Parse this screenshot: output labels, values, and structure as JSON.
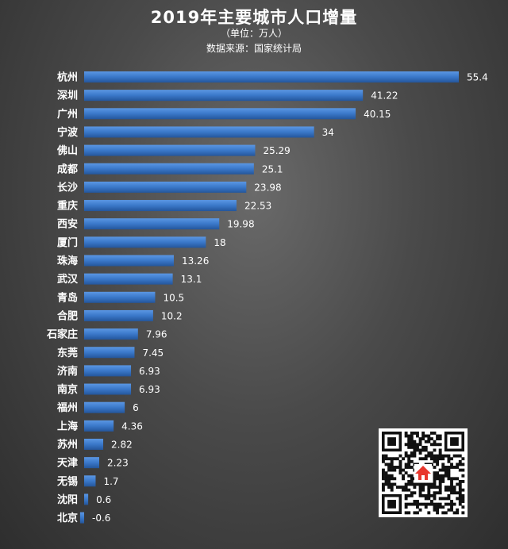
{
  "chart_data": {
    "type": "bar",
    "orientation": "horizontal",
    "title": "2019年主要城市人口增量",
    "subtitle": "（单位：万人）",
    "source": "数据来源：国家统计局",
    "categories": [
      "杭州",
      "深圳",
      "广州",
      "宁波",
      "佛山",
      "成都",
      "长沙",
      "重庆",
      "西安",
      "厦门",
      "珠海",
      "武汉",
      "青岛",
      "合肥",
      "石家庄",
      "东莞",
      "济南",
      "南京",
      "福州",
      "上海",
      "苏州",
      "天津",
      "无锡",
      "沈阳",
      "北京"
    ],
    "values": [
      55.4,
      41.22,
      40.15,
      34,
      25.29,
      25.1,
      23.98,
      22.53,
      19.98,
      18,
      13.26,
      13.1,
      10.5,
      10.2,
      7.96,
      7.45,
      6.93,
      6.93,
      6,
      4.36,
      2.82,
      2.23,
      1.7,
      0.6,
      -0.6
    ],
    "value_labels": [
      "55.4",
      "41.22",
      "40.15",
      "34",
      "25.29",
      "25.1",
      "23.98",
      "22.53",
      "19.98",
      "18",
      "13.26",
      "13.1",
      "10.5",
      "10.2",
      "7.96",
      "7.45",
      "6.93",
      "6.93",
      "6",
      "4.36",
      "2.82",
      "2.23",
      "1.7",
      "0.6",
      "-0.6"
    ],
    "xlim": [
      -0.6,
      55.4
    ],
    "grid": false,
    "legend": "none",
    "bar_color": "#3a78c9"
  },
  "qr_code": {
    "icon": "house-arrow-icon",
    "color": "#e8372d"
  }
}
